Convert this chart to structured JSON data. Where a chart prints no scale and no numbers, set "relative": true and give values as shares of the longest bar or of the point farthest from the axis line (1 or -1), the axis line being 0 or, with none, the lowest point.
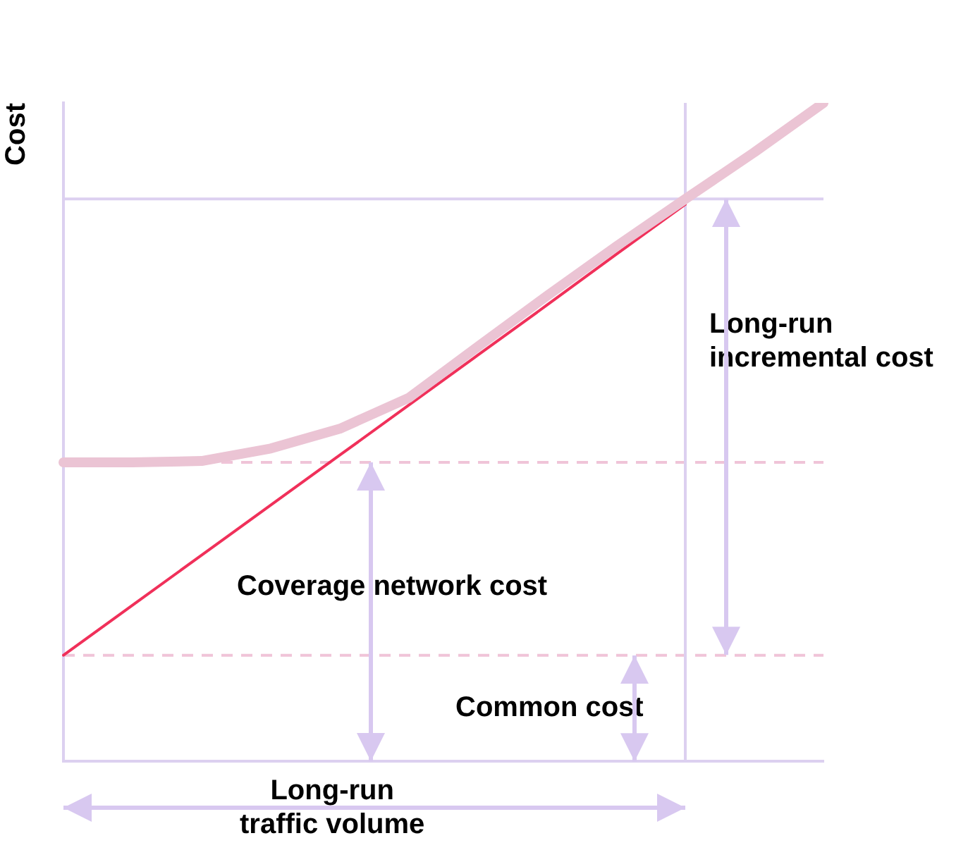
{
  "chart_data": {
    "type": "line",
    "relative": true,
    "ylabel": "Cost",
    "legend": false,
    "grid": false,
    "marker": "none",
    "line_style": "solid",
    "categories": [
      null,
      null,
      null,
      null,
      null,
      null,
      null,
      null,
      null,
      null,
      null,
      null
    ],
    "series": [
      {
        "color": "#ebc4d4",
        "values": [
          0.454,
          0.454,
          0.456,
          0.475,
          0.505,
          0.552,
          0.63,
          0.707,
          0.782,
          0.854,
          0.925,
          1
        ]
      },
      {
        "color": "#f0305a",
        "values": [
          0.161,
          0.237,
          0.313,
          0.389,
          0.465,
          0.541,
          0.617,
          0.693,
          0.77,
          0.846,
          null,
          null
        ]
      }
    ],
    "ref_lines": [
      {
        "axis": "y",
        "value": 0.854,
        "color": "#dcd0f0",
        "line_style": "solid"
      },
      {
        "axis": "y",
        "value": 0.454,
        "color": "#f0c4d8",
        "line_style": "dashed"
      },
      {
        "axis": "y",
        "value": 0.161,
        "color": "#f0c4d8",
        "line_style": "dashed"
      }
    ],
    "annotations": [
      "Long-run\nincremental cost",
      "Coverage network cost",
      "Common cost",
      "Long-run\ntraffic volume"
    ]
  }
}
